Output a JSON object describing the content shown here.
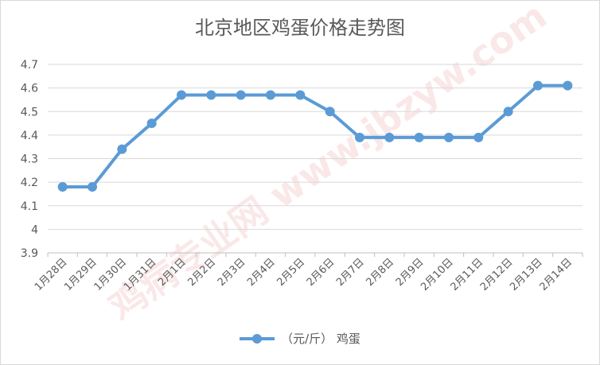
{
  "chart_data": {
    "type": "line",
    "title": "北京地区鸡蛋价格走势图",
    "categories": [
      "1月28日",
      "1月29日",
      "1月30日",
      "1月31日",
      "2月1日",
      "2月2日",
      "2月3日",
      "2月4日",
      "2月5日",
      "2月6日",
      "2月7日",
      "2月8日",
      "2月9日",
      "2月10日",
      "2月11日",
      "2月12日",
      "2月13日",
      "2月14日"
    ],
    "series": [
      {
        "name": "（元/斤） 鸡蛋",
        "values": [
          4.18,
          4.18,
          4.34,
          4.45,
          4.57,
          4.57,
          4.57,
          4.57,
          4.57,
          4.5,
          4.39,
          4.39,
          4.39,
          4.39,
          4.39,
          4.5,
          4.61,
          4.61
        ]
      }
    ],
    "yticks": [
      "3.9",
      "4",
      "4.1",
      "4.2",
      "4.3",
      "4.4",
      "4.5",
      "4.6",
      "4.7"
    ],
    "ylim": [
      3.9,
      4.7
    ],
    "grid": true,
    "legend": "bottom",
    "color": "#5b9bd5"
  },
  "watermark": "鸡病专业网 www.jbzyw.com"
}
